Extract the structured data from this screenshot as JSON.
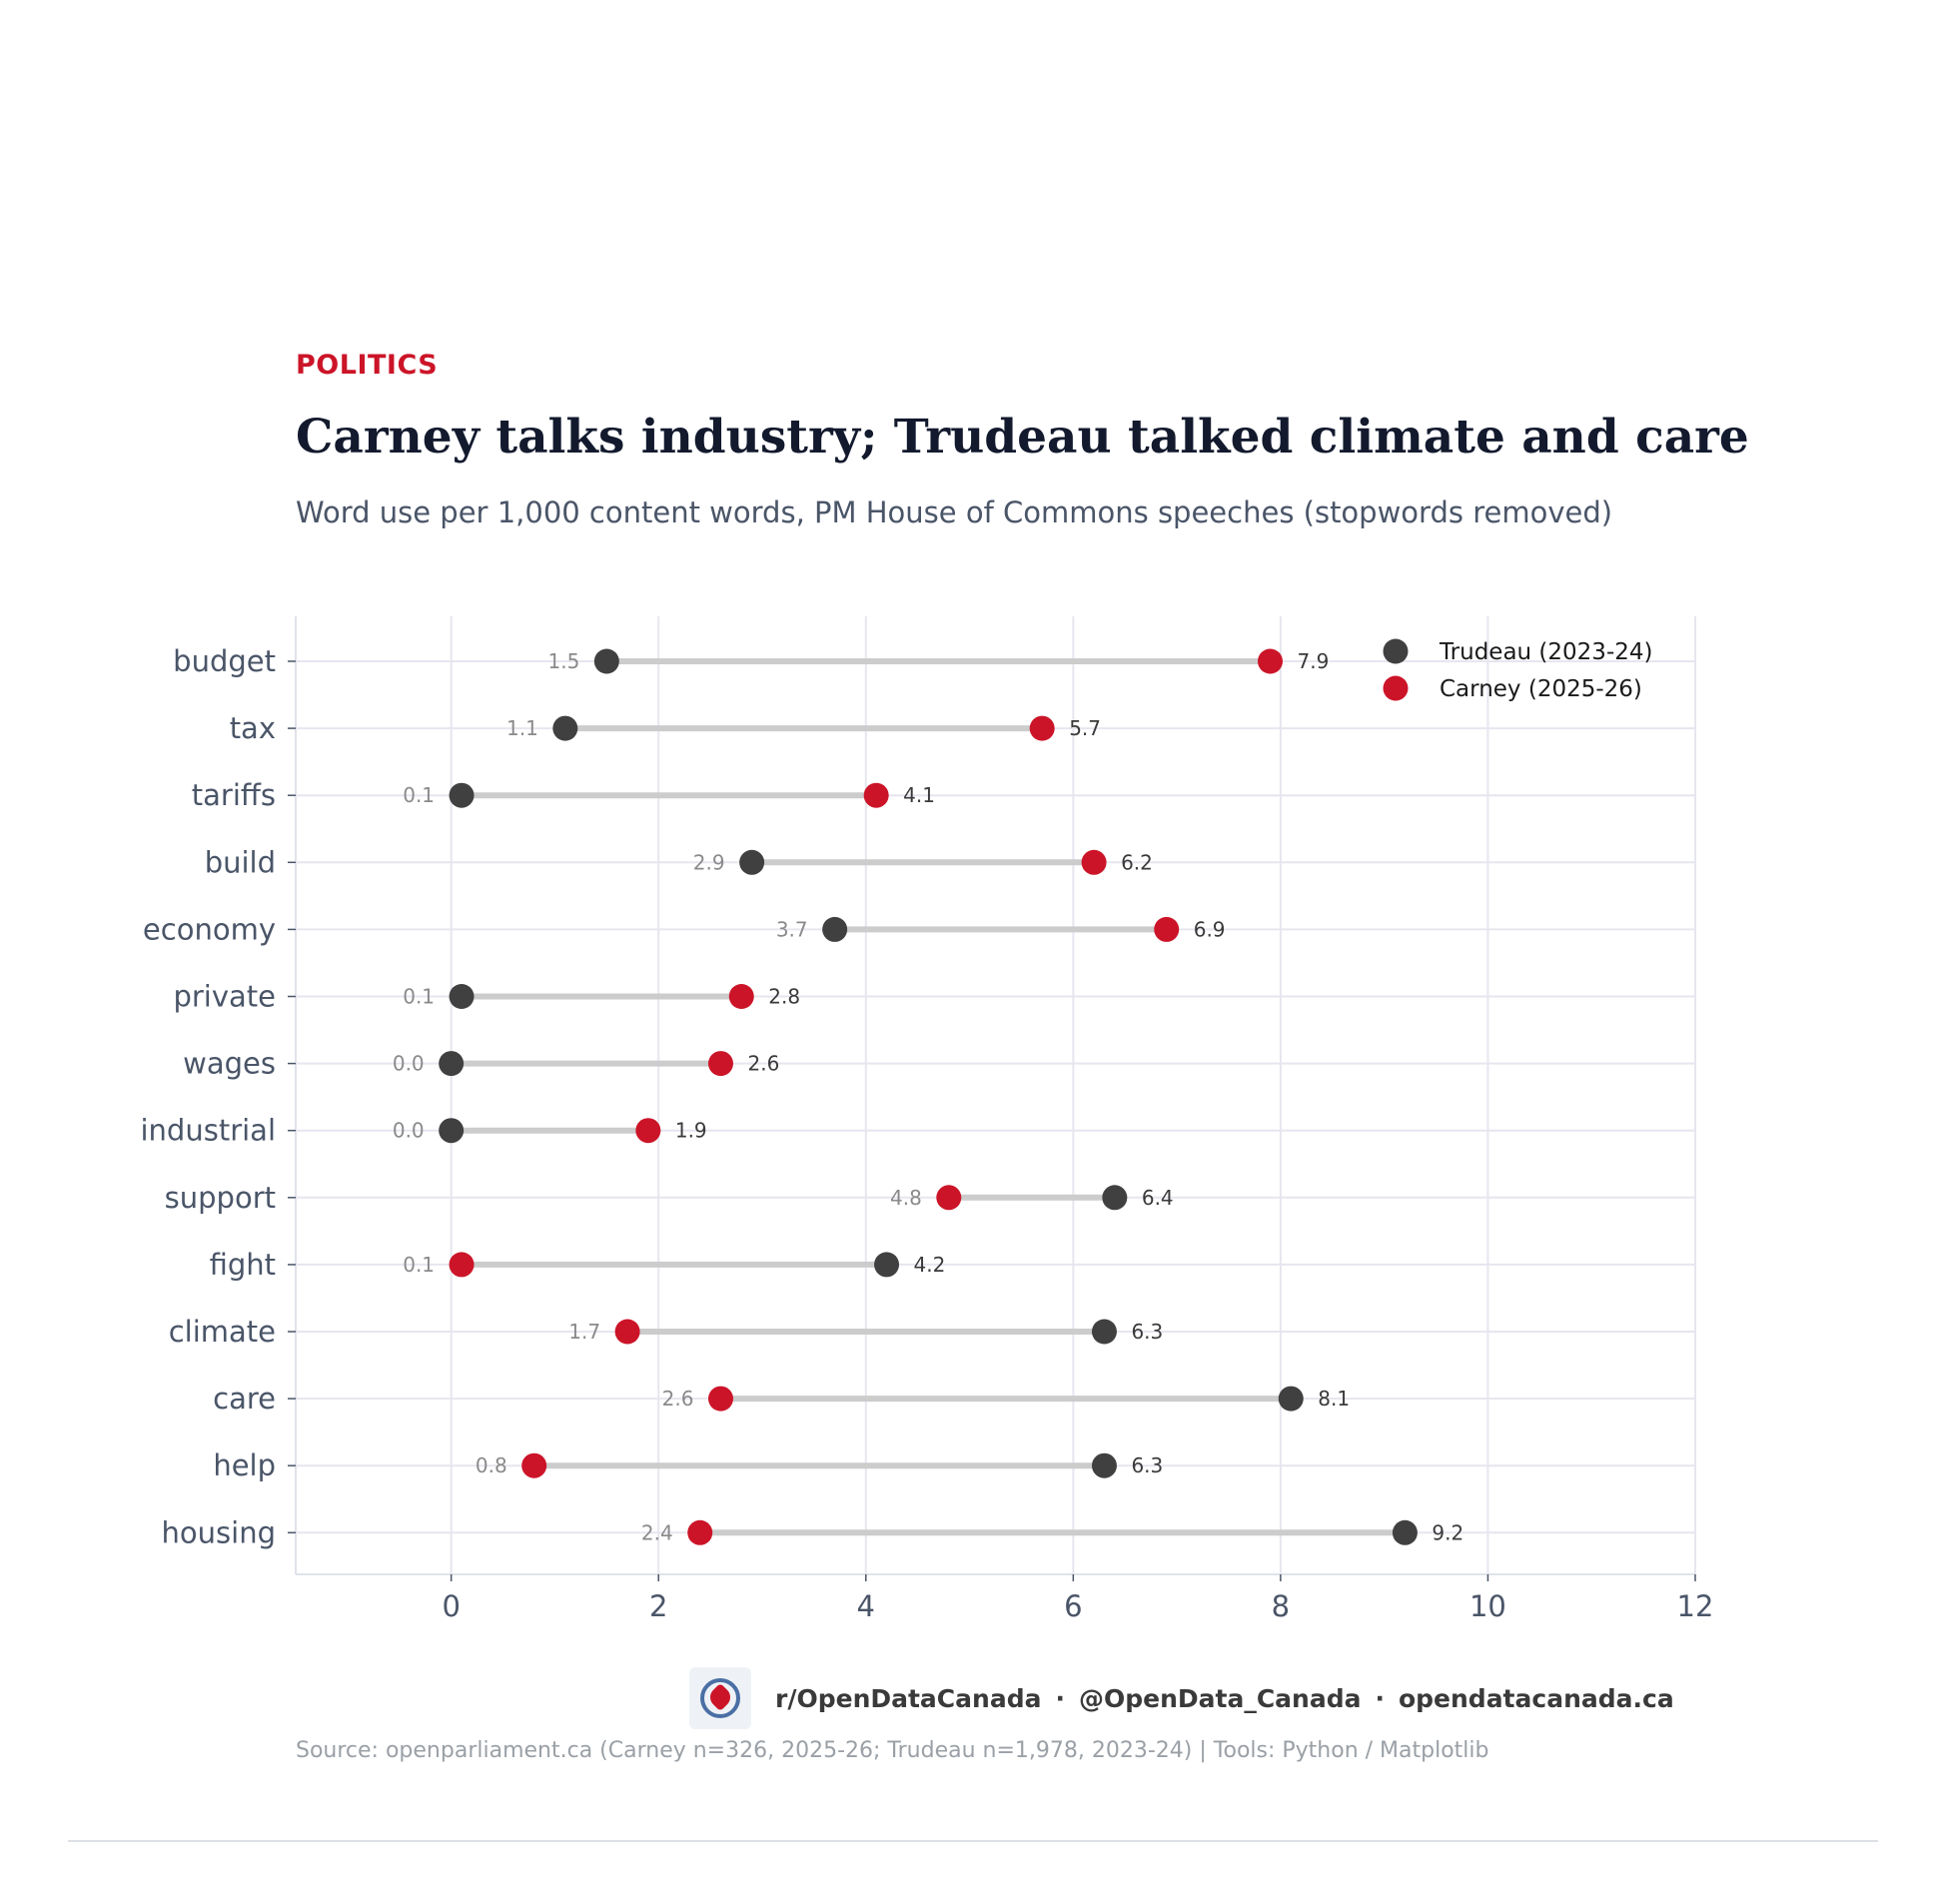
{
  "header": {
    "kicker": "POLITICS",
    "title": "Carney talks industry; Trudeau talked climate and care",
    "subtitle": "Word use per 1,000 content words, PM House of Commons speeches (stopwords removed)"
  },
  "footer": {
    "handle_reddit": "r/OpenDataCanada",
    "handle_twitter": "@OpenData_Canada",
    "website": "opendatacanada.ca",
    "separator": "·",
    "source": "Source: openparliament.ca (Carney n=326, 2025-26; Trudeau n=1,978, 2023-24)  |  Tools: Python / Matplotlib"
  },
  "colors": {
    "trudeau": "#404040",
    "carney": "#cc1428",
    "connector": "#cccccc",
    "grid": "#e6e6ef",
    "tick_text": "#4a5568"
  },
  "chart_data": {
    "type": "dumbbell",
    "title": "Carney talks industry; Trudeau talked climate and care",
    "subtitle": "Word use per 1,000 content words, PM House of Commons speeches (stopwords removed)",
    "xlabel": "",
    "ylabel": "",
    "xlim": [
      -1.5,
      12
    ],
    "xticks": [
      0,
      2,
      4,
      6,
      8,
      10,
      12
    ],
    "grid": true,
    "legend_position": "top-right",
    "categories": [
      "budget",
      "tax",
      "tariffs",
      "build",
      "economy",
      "private",
      "wages",
      "industrial",
      "support",
      "fight",
      "climate",
      "care",
      "help",
      "housing"
    ],
    "series": [
      {
        "name": "Trudeau (2023-24)",
        "values": [
          1.5,
          1.1,
          0.1,
          2.9,
          3.7,
          0.1,
          0.0,
          0.0,
          6.4,
          4.2,
          6.3,
          8.1,
          6.3,
          9.2
        ]
      },
      {
        "name": "Carney (2025-26)",
        "values": [
          7.9,
          5.7,
          4.1,
          6.2,
          6.9,
          2.8,
          2.6,
          1.9,
          4.8,
          0.1,
          1.7,
          2.6,
          0.8,
          2.4
        ]
      }
    ]
  }
}
